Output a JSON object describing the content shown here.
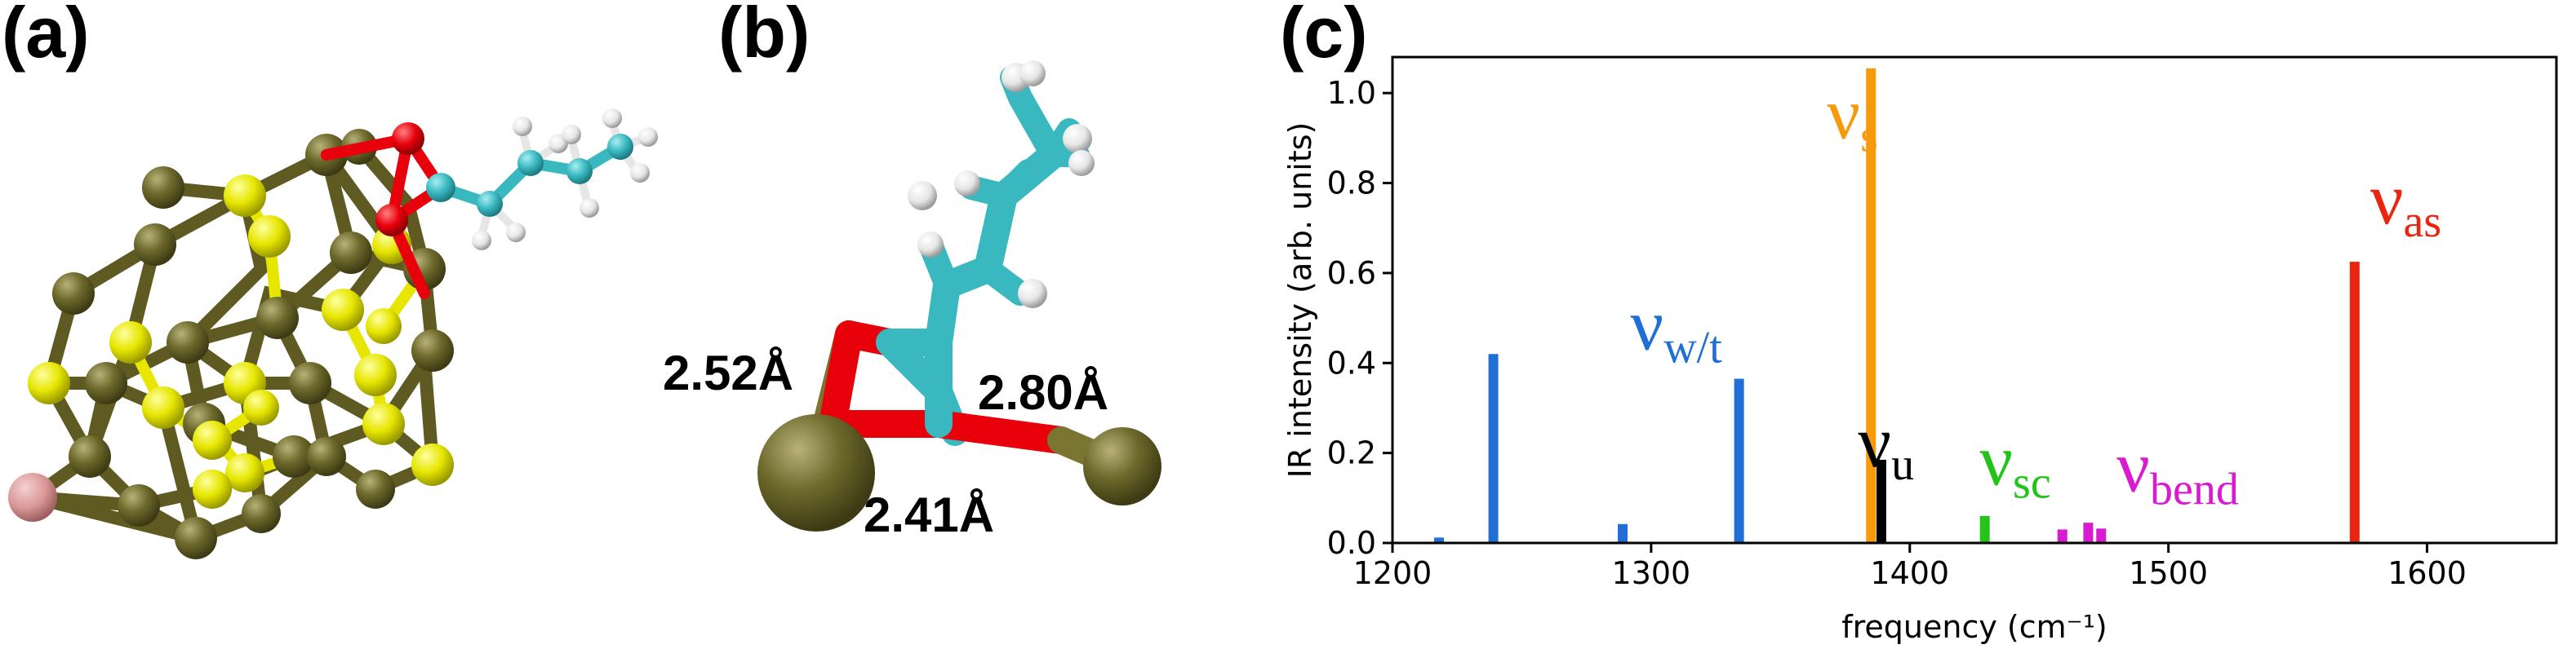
{
  "panels": {
    "a": "(a)",
    "b": "(b)",
    "c": "(c)"
  },
  "bond_lengths": {
    "left": "2.52Å",
    "right": "2.80Å",
    "bottom": "2.41Å"
  },
  "atom_colors": {
    "host_dark": "#5e5a22",
    "host_yellow": "#e6e600",
    "dopant_pink": "#d99797",
    "oxygen": "#e8000b",
    "carbon": "#3ab8c0",
    "hydrogen": "#f0f0f0"
  },
  "chart_data": {
    "type": "bar",
    "xlabel": "frequency (cm⁻¹)",
    "ylabel": "IR intensity (arb. units)",
    "xlim": [
      1200,
      1650
    ],
    "ylim": [
      0,
      1.08
    ],
    "xticks": [
      1200,
      1300,
      1400,
      1500,
      1600
    ],
    "yticks": [
      0.0,
      0.2,
      0.4,
      0.6,
      0.8,
      1.0
    ],
    "xtick_labels": [
      "1200",
      "1300",
      "1400",
      "1500",
      "1600"
    ],
    "ytick_labels": [
      "0.0",
      "0.2",
      "0.4",
      "0.6",
      "0.8",
      "1.0"
    ],
    "grid": false,
    "bars": [
      {
        "x": 1218,
        "y": 0.012,
        "color": "#1f6fd6"
      },
      {
        "x": 1239,
        "y": 0.42,
        "color": "#1f6fd6"
      },
      {
        "x": 1289,
        "y": 0.042,
        "color": "#1f6fd6"
      },
      {
        "x": 1334,
        "y": 0.365,
        "color": "#1f6fd6"
      },
      {
        "x": 1385,
        "y": 1.055,
        "color": "#f59a0a"
      },
      {
        "x": 1389,
        "y": 0.185,
        "color": "#000000"
      },
      {
        "x": 1429,
        "y": 0.06,
        "color": "#22c41a"
      },
      {
        "x": 1459,
        "y": 0.03,
        "color": "#d81ad0"
      },
      {
        "x": 1469,
        "y": 0.045,
        "color": "#d81ad0"
      },
      {
        "x": 1474,
        "y": 0.032,
        "color": "#d81ad0"
      },
      {
        "x": 1572,
        "y": 0.625,
        "color": "#e8250f"
      }
    ],
    "annotations": [
      {
        "base": "ν",
        "sub": "w/t",
        "color": "#1f6fd6",
        "x": 1292,
        "y": 0.43
      },
      {
        "base": "ν",
        "sub": "s",
        "color": "#f59a0a",
        "x": 1368,
        "y": 0.9
      },
      {
        "base": "ν",
        "sub": "u",
        "color": "#000000",
        "x": 1380,
        "y": 0.17
      },
      {
        "base": "ν",
        "sub": "sc",
        "color": "#22c41a",
        "x": 1427,
        "y": 0.13
      },
      {
        "base": "ν",
        "sub": "bend",
        "color": "#d81ad0",
        "x": 1480,
        "y": 0.115
      },
      {
        "base": "ν",
        "sub": "as",
        "color": "#e8250f",
        "x": 1578,
        "y": 0.71
      }
    ]
  }
}
